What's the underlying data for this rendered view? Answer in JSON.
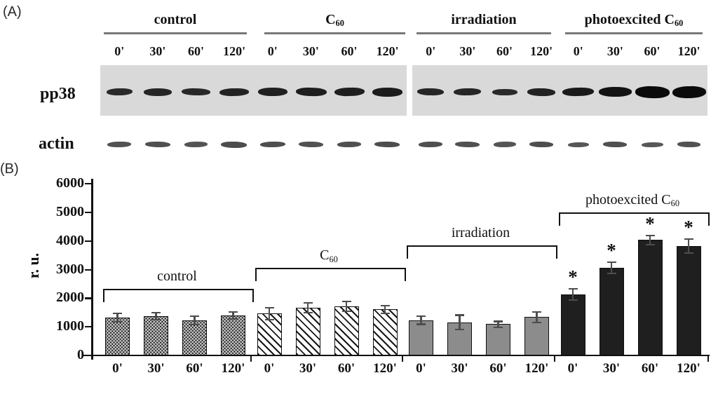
{
  "panel_a": {
    "label": "(A)",
    "rows": [
      {
        "label": "pp38"
      },
      {
        "label": "actin"
      }
    ],
    "timepoints": [
      "0'",
      "30'",
      "60'",
      "120'"
    ],
    "groups": [
      {
        "label": "control",
        "sub": ""
      },
      {
        "label": "C",
        "sub": "60"
      },
      {
        "label": "irradiation",
        "sub": ""
      },
      {
        "label": "photoexcited C",
        "sub": "60"
      }
    ],
    "pp38_bands": [
      {
        "h": 10,
        "w": 74,
        "c": "#2a2a2a"
      },
      {
        "h": 11,
        "w": 80,
        "c": "#262626"
      },
      {
        "h": 10,
        "w": 80,
        "c": "#282828"
      },
      {
        "h": 11,
        "w": 82,
        "c": "#232323"
      },
      {
        "h": 12,
        "w": 84,
        "c": "#202020"
      },
      {
        "h": 12,
        "w": 86,
        "c": "#1e1e1e"
      },
      {
        "h": 12,
        "w": 84,
        "c": "#1f1f1f"
      },
      {
        "h": 13,
        "w": 86,
        "c": "#1c1c1c"
      },
      {
        "h": 10,
        "w": 78,
        "c": "#262626"
      },
      {
        "h": 10,
        "w": 80,
        "c": "#262626"
      },
      {
        "h": 9,
        "w": 74,
        "c": "#2a2a2a"
      },
      {
        "h": 11,
        "w": 82,
        "c": "#222222"
      },
      {
        "h": 12,
        "w": 92,
        "c": "#1a1a1a"
      },
      {
        "h": 14,
        "w": 97,
        "c": "#131313"
      },
      {
        "h": 17,
        "w": 100,
        "c": "#0a0a0a"
      },
      {
        "h": 17,
        "w": 99,
        "c": "#0b0b0b"
      }
    ],
    "actin_bands": [
      {
        "h": 8,
        "w": 68,
        "c": "#525252"
      },
      {
        "h": 8,
        "w": 72,
        "c": "#4f4f4f"
      },
      {
        "h": 8,
        "w": 66,
        "c": "#545454"
      },
      {
        "h": 9,
        "w": 74,
        "c": "#4c4c4c"
      },
      {
        "h": 8,
        "w": 72,
        "c": "#4e4e4e"
      },
      {
        "h": 8,
        "w": 70,
        "c": "#515151"
      },
      {
        "h": 8,
        "w": 68,
        "c": "#505050"
      },
      {
        "h": 8,
        "w": 72,
        "c": "#4d4d4d"
      },
      {
        "h": 8,
        "w": 70,
        "c": "#4f4f4f"
      },
      {
        "h": 8,
        "w": 72,
        "c": "#515151"
      },
      {
        "h": 8,
        "w": 66,
        "c": "#555555"
      },
      {
        "h": 8,
        "w": 70,
        "c": "#4e4e4e"
      },
      {
        "h": 7,
        "w": 62,
        "c": "#565656"
      },
      {
        "h": 8,
        "w": 70,
        "c": "#505050"
      },
      {
        "h": 7,
        "w": 64,
        "c": "#575757"
      },
      {
        "h": 8,
        "w": 68,
        "c": "#525252"
      }
    ]
  },
  "panel_b": {
    "label": "(B)"
  },
  "chart_data": {
    "type": "bar",
    "title": "",
    "xlabel": "",
    "ylabel": "r. u.",
    "ylim": [
      0,
      6000
    ],
    "yticks": [
      0,
      1000,
      2000,
      3000,
      4000,
      5000,
      6000
    ],
    "categories": [
      "0'",
      "30'",
      "60'",
      "120'"
    ],
    "legend": "none",
    "grid": false,
    "sig_symbol": "*",
    "groups": [
      {
        "name": "control",
        "sub": "",
        "style": "dots",
        "bracket": 2330,
        "bars": [
          {
            "label": "0'",
            "value": 1320,
            "err": 150,
            "sig": false
          },
          {
            "label": "30'",
            "value": 1370,
            "err": 120,
            "sig": false
          },
          {
            "label": "60'",
            "value": 1230,
            "err": 150,
            "sig": false
          },
          {
            "label": "120'",
            "value": 1400,
            "err": 120,
            "sig": false
          }
        ]
      },
      {
        "name": "C",
        "sub": "60",
        "style": "hatch",
        "bracket": 3060,
        "bars": [
          {
            "label": "0'",
            "value": 1460,
            "err": 200,
            "sig": false
          },
          {
            "label": "30'",
            "value": 1660,
            "err": 170,
            "sig": false
          },
          {
            "label": "60'",
            "value": 1720,
            "err": 170,
            "sig": false
          },
          {
            "label": "120'",
            "value": 1610,
            "err": 140,
            "sig": false
          }
        ]
      },
      {
        "name": "irradiation",
        "sub": "",
        "style": "gray",
        "bracket": 3850,
        "bars": [
          {
            "label": "0'",
            "value": 1230,
            "err": 140,
            "sig": false
          },
          {
            "label": "30'",
            "value": 1160,
            "err": 250,
            "sig": false
          },
          {
            "label": "60'",
            "value": 1090,
            "err": 100,
            "sig": false
          },
          {
            "label": "120'",
            "value": 1340,
            "err": 180,
            "sig": false
          }
        ]
      },
      {
        "name": "photoexcited C",
        "sub": "60",
        "style": "black",
        "bracket": 5000,
        "bars": [
          {
            "label": "0'",
            "value": 2130,
            "err": 200,
            "sig": true
          },
          {
            "label": "30'",
            "value": 3060,
            "err": 190,
            "sig": true
          },
          {
            "label": "60'",
            "value": 4040,
            "err": 160,
            "sig": true
          },
          {
            "label": "120'",
            "value": 3820,
            "err": 250,
            "sig": true
          }
        ]
      }
    ]
  },
  "colors": {
    "strip_bg": "#d9d9d9",
    "underline": "#787878",
    "bar_dots_bg": "#cdcdcd",
    "bar_dot": "#1a1a1a",
    "bar_hatch_bg": "#ffffff",
    "bar_hatch_line": "#161616",
    "bar_gray": "#8c8c8c",
    "bar_black": "#1f1f1f",
    "bar_border": "#101010",
    "error_bar": "#4d4d4d",
    "axis": "#111111"
  }
}
